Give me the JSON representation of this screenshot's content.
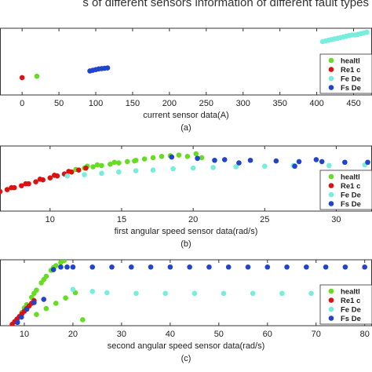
{
  "header": {
    "text": "s of different sensors information of different fault types"
  },
  "chart_data": [
    {
      "type": "scatter",
      "caption": "(a)",
      "xlabel": "current sensor data(A)",
      "ylabel": "",
      "xlim": [
        -30,
        475
      ],
      "ylim": [
        0,
        10
      ],
      "xticks": [
        0,
        50,
        100,
        150,
        200,
        250,
        300,
        350,
        400,
        450
      ],
      "legend": {
        "placement": "bottom-right",
        "labels": [
          "healtl",
          "Re1 c",
          "Fe De",
          "Fs De"
        ]
      },
      "series": [
        {
          "name": "healtl",
          "color": "#66dd22",
          "points": [
            [
              20,
              2.8
            ]
          ]
        },
        {
          "name": "Re1 c",
          "color": "#dd1111",
          "points": [
            [
              0,
              2.6
            ]
          ]
        },
        {
          "name": "Fe De",
          "color": "#77eedd",
          "points": [
            [
              408,
              8.0
            ],
            [
              412,
              8.1
            ],
            [
              416,
              8.2
            ],
            [
              420,
              8.3
            ],
            [
              424,
              8.4
            ],
            [
              428,
              8.5
            ],
            [
              432,
              8.6
            ],
            [
              436,
              8.7
            ],
            [
              440,
              8.8
            ],
            [
              444,
              8.9
            ],
            [
              448,
              9.0
            ],
            [
              452,
              9.0
            ],
            [
              456,
              9.1
            ],
            [
              460,
              9.2
            ],
            [
              464,
              9.3
            ],
            [
              468,
              9.4
            ]
          ]
        },
        {
          "name": "Fs De",
          "color": "#2244cc",
          "points": [
            [
              92,
              3.6
            ],
            [
              96,
              3.7
            ],
            [
              100,
              3.8
            ],
            [
              104,
              3.9
            ],
            [
              108,
              3.95
            ],
            [
              112,
              4.0
            ],
            [
              116,
              4.05
            ]
          ]
        }
      ]
    },
    {
      "type": "scatter",
      "caption": "(b)",
      "xlabel": "first angular speed sensor data(rad/s)",
      "ylabel": "",
      "xlim": [
        6.5,
        32.5
      ],
      "ylim": [
        0,
        10
      ],
      "xticks": [
        10,
        15,
        20,
        25,
        30
      ],
      "legend": {
        "placement": "bottom-right",
        "labels": [
          "healtl",
          "Re1 c",
          "Fe De",
          "Fs De"
        ]
      },
      "series": [
        {
          "name": "healtl",
          "color": "#66dd22",
          "points": [
            [
              11.8,
              6.4
            ],
            [
              12.4,
              6.6
            ],
            [
              13.0,
              6.8
            ],
            [
              13.6,
              7.0
            ],
            [
              14.2,
              7.2
            ],
            [
              14.8,
              7.4
            ],
            [
              15.4,
              7.6
            ],
            [
              16.0,
              7.8
            ],
            [
              16.6,
              8.0
            ],
            [
              17.2,
              8.2
            ],
            [
              17.8,
              8.4
            ],
            [
              18.4,
              8.5
            ],
            [
              19.0,
              8.6
            ],
            [
              19.6,
              8.4
            ],
            [
              20.2,
              8.8
            ],
            [
              20.6,
              8.2
            ],
            [
              12.6,
              6.9
            ],
            [
              13.3,
              7.1
            ],
            [
              14.5,
              7.5
            ],
            [
              15.9,
              7.7
            ]
          ]
        },
        {
          "name": "Re1 c",
          "color": "#dd1111",
          "points": [
            [
              6.5,
              3.0
            ],
            [
              7.0,
              3.3
            ],
            [
              7.5,
              3.6
            ],
            [
              8.0,
              3.9
            ],
            [
              8.5,
              4.2
            ],
            [
              9.0,
              4.5
            ],
            [
              9.5,
              4.8
            ],
            [
              10.0,
              5.1
            ],
            [
              10.5,
              5.4
            ],
            [
              11.0,
              5.7
            ],
            [
              11.5,
              6.0
            ],
            [
              12.0,
              6.3
            ],
            [
              12.5,
              6.6
            ],
            [
              7.3,
              3.6
            ],
            [
              8.3,
              4.2
            ],
            [
              9.3,
              4.9
            ],
            [
              10.3,
              5.5
            ],
            [
              11.3,
              6.1
            ]
          ]
        },
        {
          "name": "Fe De",
          "color": "#77eedd",
          "points": [
            [
              11.2,
              5.4
            ],
            [
              12.4,
              5.6
            ],
            [
              13.6,
              5.8
            ],
            [
              14.8,
              6.0
            ],
            [
              16.0,
              6.2
            ],
            [
              17.2,
              6.3
            ],
            [
              18.6,
              6.5
            ],
            [
              20.0,
              6.6
            ],
            [
              21.4,
              6.7
            ],
            [
              23.0,
              6.8
            ],
            [
              25.0,
              6.9
            ],
            [
              27.0,
              7.0
            ],
            [
              29.5,
              7.0
            ],
            [
              32.0,
              7.1
            ]
          ]
        },
        {
          "name": "Fs De",
          "color": "#2244cc",
          "points": [
            [
              18.5,
              8.3
            ],
            [
              20.3,
              8.1
            ],
            [
              22.2,
              7.9
            ],
            [
              24.0,
              7.8
            ],
            [
              25.8,
              7.7
            ],
            [
              27.4,
              7.6
            ],
            [
              29.0,
              7.6
            ],
            [
              30.6,
              7.5
            ],
            [
              32.2,
              7.5
            ],
            [
              21.5,
              7.8
            ],
            [
              23.2,
              7.4
            ],
            [
              27.1,
              6.9
            ],
            [
              28.6,
              7.9
            ]
          ]
        }
      ]
    },
    {
      "type": "scatter",
      "caption": "(c)",
      "xlabel": "second angular speed sensor data(rad/s)",
      "ylabel": "",
      "xlim": [
        5,
        81.5
      ],
      "ylim": [
        0,
        10
      ],
      "xticks": [
        10,
        20,
        30,
        40,
        50,
        60,
        70,
        80
      ],
      "legend": {
        "placement": "bottom-right",
        "labels": [
          "healtl",
          "Re1 c",
          "Fe De",
          "Fs De"
        ]
      },
      "series": [
        {
          "name": "healtl",
          "color": "#66dd22",
          "points": [
            [
              8.5,
              0.9
            ],
            [
              9.5,
              2.0
            ],
            [
              10.5,
              3.2
            ],
            [
              11.5,
              4.3
            ],
            [
              12.5,
              5.4
            ],
            [
              13.5,
              6.5
            ],
            [
              14.5,
              7.5
            ],
            [
              15.5,
              8.4
            ],
            [
              16.5,
              9.1
            ],
            [
              17.5,
              9.6
            ],
            [
              18.2,
              9.9
            ],
            [
              10.0,
              2.7
            ],
            [
              12.0,
              4.9
            ],
            [
              14.0,
              7.0
            ],
            [
              16.0,
              8.8
            ],
            [
              12.5,
              1.7
            ],
            [
              14.5,
              2.6
            ],
            [
              16.5,
              3.4
            ],
            [
              18.5,
              4.2
            ],
            [
              20.5,
              5.0
            ],
            [
              22.0,
              0.9
            ]
          ]
        },
        {
          "name": "Re1 c",
          "color": "#dd1111",
          "points": [
            [
              7.5,
              0.2
            ],
            [
              8.0,
              0.6
            ],
            [
              8.5,
              1.0
            ],
            [
              9.0,
              1.4
            ],
            [
              9.5,
              1.8
            ],
            [
              10.0,
              2.2
            ],
            [
              10.5,
              2.6
            ],
            [
              11.0,
              3.0
            ],
            [
              11.5,
              3.4
            ],
            [
              12.0,
              3.8
            ]
          ]
        },
        {
          "name": "Fe De",
          "color": "#77eedd",
          "points": [
            [
              27,
              5.0
            ],
            [
              33,
              4.9
            ],
            [
              39,
              4.9
            ],
            [
              45,
              4.9
            ],
            [
              51,
              4.9
            ],
            [
              57,
              4.9
            ],
            [
              63,
              4.9
            ],
            [
              69,
              4.9
            ],
            [
              75,
              4.9
            ],
            [
              80,
              4.8
            ],
            [
              20,
              5.5
            ],
            [
              24,
              5.2
            ]
          ]
        },
        {
          "name": "Fs De",
          "color": "#2244cc",
          "points": [
            [
              8.6,
              0.5
            ],
            [
              9.4,
              1.3
            ],
            [
              10.5,
              2.5
            ],
            [
              12.0,
              3.5
            ],
            [
              14.0,
              4.0
            ],
            [
              16.0,
              8.5
            ],
            [
              17.5,
              8.9
            ],
            [
              18.8,
              8.9
            ],
            [
              20,
              8.9
            ],
            [
              24,
              8.9
            ],
            [
              28,
              8.9
            ],
            [
              32,
              8.9
            ],
            [
              36,
              8.9
            ],
            [
              40,
              8.9
            ],
            [
              44,
              8.9
            ],
            [
              48,
              8.9
            ],
            [
              52,
              8.9
            ],
            [
              56,
              8.9
            ],
            [
              60,
              8.9
            ],
            [
              64,
              8.9
            ],
            [
              68,
              8.9
            ],
            [
              72,
              8.9
            ],
            [
              76,
              8.9
            ],
            [
              80,
              8.9
            ]
          ]
        }
      ]
    }
  ]
}
